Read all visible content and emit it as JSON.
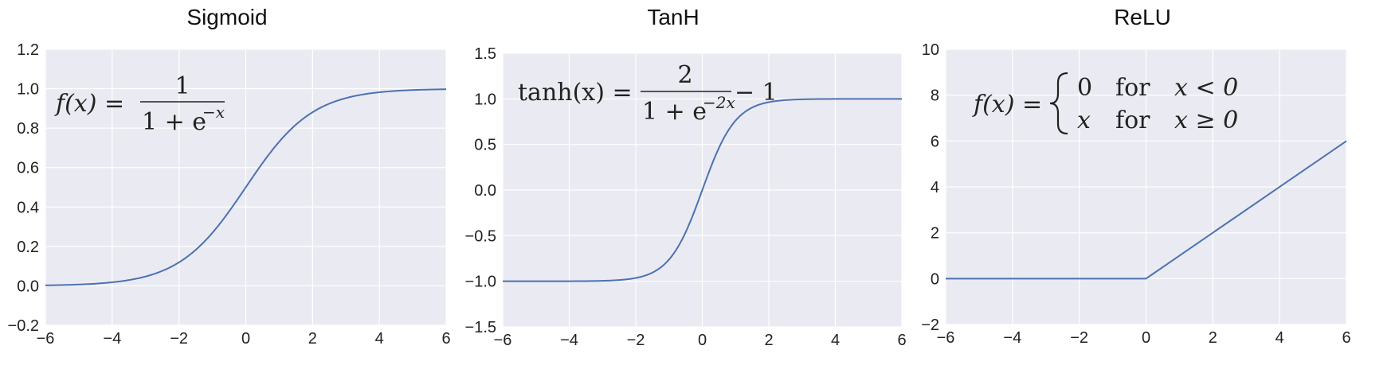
{
  "chart_data": [
    {
      "type": "line",
      "title": "Sigmoid",
      "xlabel": "",
      "ylabel": "",
      "xlim": [
        -6,
        6
      ],
      "ylim": [
        -0.2,
        1.2
      ],
      "xticks": [
        -6,
        -4,
        -2,
        0,
        2,
        4,
        6
      ],
      "yticks": [
        -0.2,
        0.0,
        0.2,
        0.4,
        0.6,
        0.8,
        1.0,
        1.2
      ],
      "xtick_labels": [
        "−6",
        "−4",
        "−2",
        "0",
        "2",
        "4",
        "6"
      ],
      "ytick_labels": [
        "−0.2",
        "0.0",
        "0.2",
        "0.4",
        "0.6",
        "0.8",
        "1.0",
        "1.2"
      ],
      "grid": true,
      "series": [
        {
          "function": "sigmoid",
          "x": [
            -6,
            -5,
            -4,
            -3,
            -2,
            -1,
            0,
            1,
            2,
            3,
            4,
            5,
            6
          ],
          "y": [
            0.0025,
            0.0067,
            0.018,
            0.047,
            0.119,
            0.269,
            0.5,
            0.731,
            0.881,
            0.953,
            0.982,
            0.993,
            0.9975
          ]
        }
      ],
      "annotation": {
        "lhs": "f(x) =",
        "numerator": "1",
        "denominator": "1 + e",
        "exponent": "−x"
      }
    },
    {
      "type": "line",
      "title": "TanH",
      "xlabel": "",
      "ylabel": "",
      "xlim": [
        -6,
        6
      ],
      "ylim": [
        -1.5,
        1.5
      ],
      "xticks": [
        -6,
        -4,
        -2,
        0,
        2,
        4,
        6
      ],
      "yticks": [
        -1.5,
        -1.0,
        -0.5,
        0.0,
        0.5,
        1.0,
        1.5
      ],
      "xtick_labels": [
        "−6",
        "−4",
        "−2",
        "0",
        "2",
        "4",
        "6"
      ],
      "ytick_labels": [
        "−1.5",
        "−1.0",
        "−0.5",
        "0.0",
        "0.5",
        "1.0",
        "1.5"
      ],
      "grid": true,
      "series": [
        {
          "function": "tanh",
          "x": [
            -6,
            -4,
            -3,
            -2,
            -1.5,
            -1,
            -0.5,
            0,
            0.5,
            1,
            1.5,
            2,
            3,
            4,
            6
          ],
          "y": [
            -1.0,
            -0.999,
            -0.995,
            -0.964,
            -0.905,
            -0.762,
            -0.462,
            0.0,
            0.462,
            0.762,
            0.905,
            0.964,
            0.995,
            0.999,
            1.0
          ]
        }
      ],
      "annotation": {
        "lhs": "tanh(x) =",
        "numerator": "2",
        "denominator": "1 + e",
        "exponent": "−2x",
        "tail": "− 1"
      }
    },
    {
      "type": "line",
      "title": "ReLU",
      "xlabel": "",
      "ylabel": "",
      "xlim": [
        -6,
        6
      ],
      "ylim": [
        -2,
        10
      ],
      "xticks": [
        -6,
        -4,
        -2,
        0,
        2,
        4,
        6
      ],
      "yticks": [
        -2,
        0,
        2,
        4,
        6,
        8,
        10
      ],
      "xtick_labels": [
        "−6",
        "−4",
        "−2",
        "0",
        "2",
        "4",
        "6"
      ],
      "ytick_labels": [
        "−2",
        "0",
        "2",
        "4",
        "6",
        "8",
        "10"
      ],
      "grid": true,
      "series": [
        {
          "function": "relu",
          "x": [
            -6,
            0,
            6
          ],
          "y": [
            0,
            0,
            6
          ]
        }
      ],
      "annotation": {
        "lhs": "f(x) =",
        "case1_value": "0",
        "case1_word": "for",
        "case1_cond": "x < 0",
        "case2_value": "x",
        "case2_word": "for",
        "case2_cond": "x ≥ 0"
      }
    }
  ],
  "style": {
    "plot_bg": "#eaeaf2",
    "grid_color": "#ffffff",
    "line_color": "#4c72b0"
  }
}
